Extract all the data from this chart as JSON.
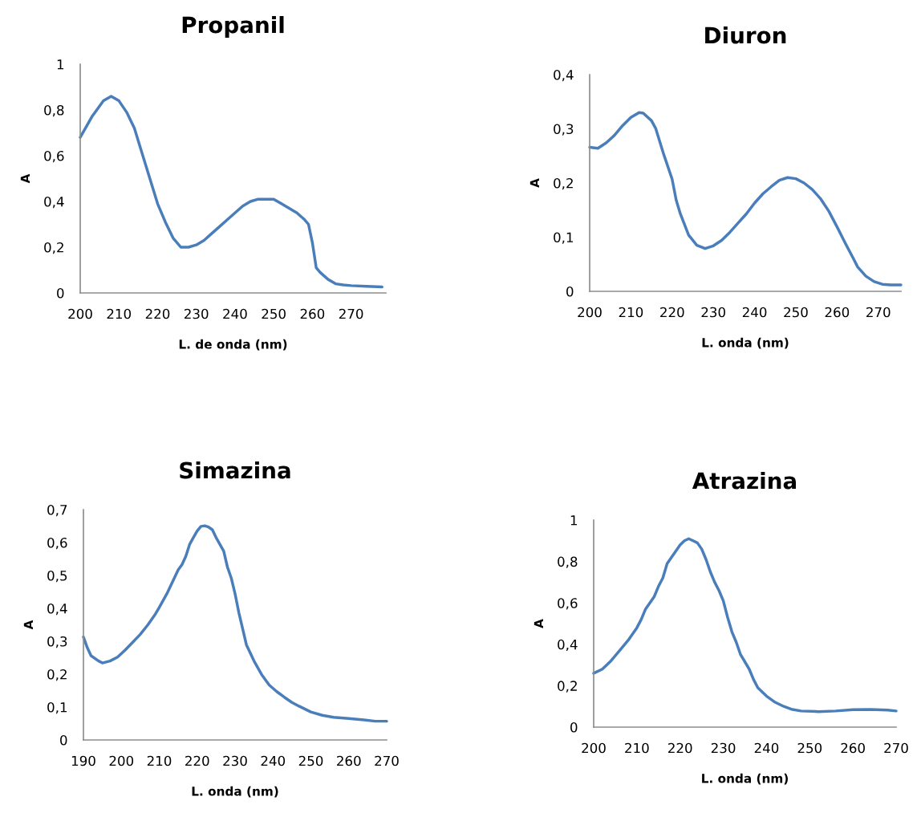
{
  "chart_data": [
    {
      "type": "line",
      "title": "Propanil",
      "xlabel": "L. de onda (nm)",
      "ylabel": "A",
      "color": "#4a7ebb",
      "grid": false,
      "x": [
        200,
        203,
        206,
        208,
        210,
        212,
        214,
        216,
        218,
        220,
        222,
        224,
        226,
        228,
        230,
        232,
        234,
        236,
        238,
        240,
        242,
        244,
        246,
        248,
        250,
        252,
        254,
        256,
        258,
        259,
        260,
        261,
        262,
        264,
        266,
        268,
        270,
        274,
        278
      ],
      "values": [
        0.68,
        0.77,
        0.84,
        0.86,
        0.84,
        0.79,
        0.72,
        0.61,
        0.5,
        0.39,
        0.31,
        0.24,
        0.2,
        0.2,
        0.21,
        0.23,
        0.26,
        0.29,
        0.32,
        0.35,
        0.38,
        0.4,
        0.41,
        0.41,
        0.41,
        0.39,
        0.37,
        0.35,
        0.32,
        0.3,
        0.22,
        0.11,
        0.09,
        0.06,
        0.04,
        0.035,
        0.032,
        0.029,
        0.026
      ],
      "xlim": [
        200,
        279
      ],
      "xticks": [
        200,
        210,
        220,
        230,
        240,
        250,
        260,
        270
      ],
      "ylim": [
        0,
        1
      ],
      "yticks": [
        0,
        {
          "value": 0.2,
          "label": "0,2"
        },
        {
          "value": 0.4,
          "label": "0,4"
        },
        {
          "value": 0.6,
          "label": "0,6"
        },
        {
          "value": 0.8,
          "label": "0,8"
        },
        1
      ]
    },
    {
      "type": "line",
      "title": "Diuron",
      "xlabel": "L. onda (nm)",
      "ylabel": "A",
      "color": "#4a7ebb",
      "grid": false,
      "x": [
        200,
        202,
        204,
        206,
        208,
        210,
        212,
        213,
        215,
        216,
        218,
        220,
        221,
        222,
        224,
        226,
        228,
        230,
        232,
        234,
        236,
        238,
        240,
        242,
        244,
        246,
        248,
        250,
        252,
        254,
        256,
        258,
        260,
        262,
        264,
        265,
        267,
        269,
        271,
        273,
        275.5
      ],
      "values": [
        0.266,
        0.264,
        0.274,
        0.288,
        0.306,
        0.321,
        0.33,
        0.329,
        0.315,
        0.301,
        0.252,
        0.207,
        0.168,
        0.143,
        0.104,
        0.085,
        0.079,
        0.084,
        0.094,
        0.109,
        0.126,
        0.143,
        0.163,
        0.18,
        0.193,
        0.205,
        0.21,
        0.208,
        0.2,
        0.188,
        0.171,
        0.148,
        0.119,
        0.089,
        0.06,
        0.045,
        0.028,
        0.018,
        0.013,
        0.012,
        0.012
      ],
      "xlim": [
        200,
        275.5
      ],
      "xticks": [
        200,
        210,
        220,
        230,
        240,
        250,
        260,
        270
      ],
      "ylim": [
        0,
        0.4
      ],
      "yticks": [
        0,
        {
          "value": 0.1,
          "label": "0,1"
        },
        {
          "value": 0.2,
          "label": "0,2"
        },
        {
          "value": 0.3,
          "label": "0,3"
        },
        {
          "value": 0.4,
          "label": "0,4"
        }
      ]
    },
    {
      "type": "line",
      "title": "Simazina",
      "xlabel": "L. onda (nm)",
      "ylabel": "A",
      "color": "#4a7ebb",
      "grid": false,
      "x": [
        190,
        191,
        192,
        194,
        195,
        197,
        199,
        201,
        203,
        205,
        207,
        209,
        210,
        212,
        213,
        215,
        216,
        217,
        218,
        219,
        220,
        221,
        222,
        223,
        224,
        225,
        227,
        228,
        229,
        230,
        231,
        232,
        233,
        235,
        237,
        239,
        241,
        243,
        245,
        247,
        250,
        253,
        256,
        260,
        264,
        267,
        270
      ],
      "values": [
        0.313,
        0.281,
        0.256,
        0.24,
        0.234,
        0.24,
        0.252,
        0.273,
        0.297,
        0.321,
        0.35,
        0.383,
        0.403,
        0.444,
        0.468,
        0.517,
        0.533,
        0.558,
        0.594,
        0.615,
        0.635,
        0.649,
        0.651,
        0.647,
        0.639,
        0.615,
        0.574,
        0.525,
        0.492,
        0.444,
        0.387,
        0.338,
        0.289,
        0.24,
        0.199,
        0.167,
        0.147,
        0.13,
        0.114,
        0.102,
        0.085,
        0.075,
        0.069,
        0.065,
        0.061,
        0.057,
        0.057
      ],
      "xlim": [
        190,
        270
      ],
      "xticks": [
        190,
        200,
        210,
        220,
        230,
        240,
        250,
        260,
        270
      ],
      "ylim": [
        0,
        0.7
      ],
      "yticks": [
        0,
        {
          "value": 0.1,
          "label": "0,1"
        },
        {
          "value": 0.2,
          "label": "0,2"
        },
        {
          "value": 0.3,
          "label": "0,3"
        },
        {
          "value": 0.4,
          "label": "0,4"
        },
        {
          "value": 0.5,
          "label": "0,5"
        },
        {
          "value": 0.6,
          "label": "0,6"
        },
        {
          "value": 0.7,
          "label": "0,7"
        }
      ]
    },
    {
      "type": "line",
      "title": "Atrazina",
      "xlabel": "L. onda (nm)",
      "ylabel": "A",
      "color": "#4a7ebb",
      "grid": false,
      "x": [
        200,
        202,
        204,
        206,
        208,
        210,
        211,
        212,
        214,
        215,
        216,
        217,
        218,
        219,
        220,
        221,
        222,
        223,
        224,
        225,
        226,
        227,
        228,
        229,
        230,
        231,
        232,
        233,
        234,
        236,
        237,
        238,
        240,
        242,
        244,
        246,
        248,
        252,
        256,
        260,
        264,
        268,
        270
      ],
      "values": [
        0.26,
        0.28,
        0.32,
        0.37,
        0.42,
        0.48,
        0.52,
        0.57,
        0.63,
        0.68,
        0.72,
        0.79,
        0.82,
        0.85,
        0.88,
        0.9,
        0.91,
        0.9,
        0.89,
        0.86,
        0.81,
        0.75,
        0.7,
        0.66,
        0.61,
        0.53,
        0.46,
        0.41,
        0.35,
        0.28,
        0.23,
        0.19,
        0.15,
        0.12,
        0.1,
        0.085,
        0.078,
        0.075,
        0.078,
        0.084,
        0.085,
        0.082,
        0.078
      ],
      "xlim": [
        200,
        270
      ],
      "xticks": [
        200,
        210,
        220,
        230,
        240,
        250,
        260,
        270
      ],
      "ylim": [
        0,
        1
      ],
      "yticks": [
        0,
        {
          "value": 0.2,
          "label": "0,2"
        },
        {
          "value": 0.4,
          "label": "0,4"
        },
        {
          "value": 0.6,
          "label": "0,6"
        },
        {
          "value": 0.8,
          "label": "0,8"
        },
        1
      ]
    }
  ]
}
